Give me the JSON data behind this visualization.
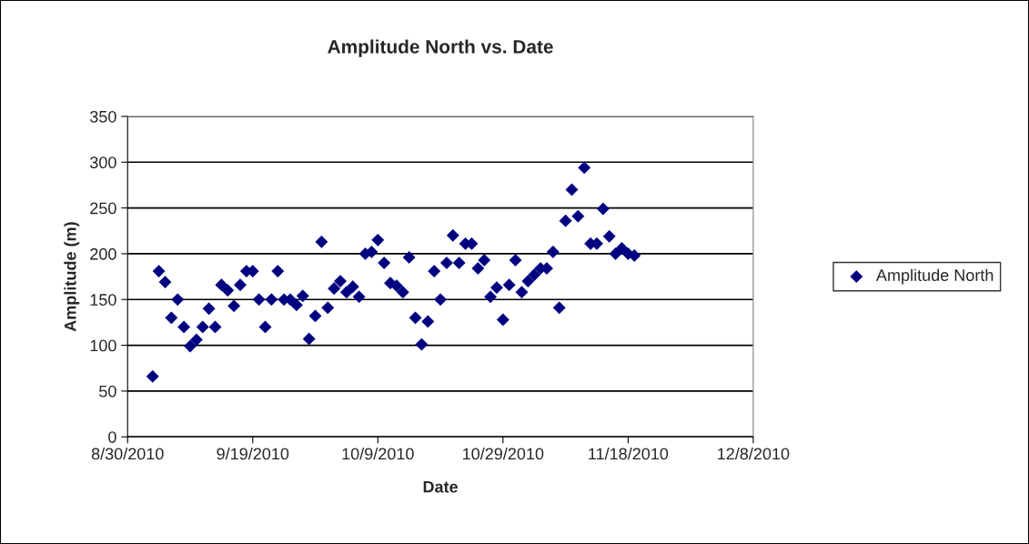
{
  "chart_data": {
    "type": "scatter",
    "title": "Amplitude North vs. Date",
    "xlabel": "Date",
    "ylabel": "Amplitude (m)",
    "x": [
      "2010-09-03",
      "2010-09-04",
      "2010-09-05",
      "2010-09-06",
      "2010-09-07",
      "2010-09-08",
      "2010-09-09",
      "2010-09-10",
      "2010-09-11",
      "2010-09-12",
      "2010-09-13",
      "2010-09-14",
      "2010-09-15",
      "2010-09-16",
      "2010-09-17",
      "2010-09-18",
      "2010-09-19",
      "2010-09-20",
      "2010-09-21",
      "2010-09-22",
      "2010-09-23",
      "2010-09-24",
      "2010-09-25",
      "2010-09-26",
      "2010-09-27",
      "2010-09-28",
      "2010-09-29",
      "2010-09-30",
      "2010-10-01",
      "2010-10-02",
      "2010-10-03",
      "2010-10-04",
      "2010-10-05",
      "2010-10-06",
      "2010-10-07",
      "2010-10-08",
      "2010-10-09",
      "2010-10-10",
      "2010-10-11",
      "2010-10-12",
      "2010-10-13",
      "2010-10-14",
      "2010-10-15",
      "2010-10-16",
      "2010-10-17",
      "2010-10-18",
      "2010-10-19",
      "2010-10-20",
      "2010-10-21",
      "2010-10-22",
      "2010-10-23",
      "2010-10-24",
      "2010-10-25",
      "2010-10-26",
      "2010-10-27",
      "2010-10-28",
      "2010-10-29",
      "2010-10-30",
      "2010-10-31",
      "2010-11-01",
      "2010-11-02",
      "2010-11-03",
      "2010-11-04",
      "2010-11-05",
      "2010-11-06",
      "2010-11-07",
      "2010-11-08",
      "2010-11-09",
      "2010-11-10",
      "2010-11-11",
      "2010-11-12",
      "2010-11-13",
      "2010-11-14",
      "2010-11-15",
      "2010-11-16",
      "2010-11-17",
      "2010-11-18",
      "2010-11-19"
    ],
    "series": [
      {
        "name": "Amplitude North",
        "color": "#000080",
        "values": [
          66,
          181,
          169,
          130,
          150,
          120,
          99,
          106,
          120,
          140,
          120,
          166,
          160,
          143,
          166,
          181,
          181,
          150,
          120,
          150,
          181,
          150,
          150,
          144,
          154,
          107,
          132,
          213,
          141,
          162,
          170,
          158,
          164,
          153,
          200,
          202,
          215,
          190,
          168,
          165,
          158,
          196,
          130,
          101,
          126,
          181,
          150,
          190,
          220,
          190,
          211,
          211,
          184,
          193,
          153,
          163,
          128,
          166,
          193,
          158,
          170,
          177,
          184,
          184,
          202,
          141,
          236,
          270,
          241,
          294,
          211,
          211,
          249,
          219,
          200,
          206,
          200,
          198
        ]
      }
    ],
    "xlim": [
      "2010-08-30",
      "2010-12-08"
    ],
    "xticks": [
      {
        "value": "2010-08-30",
        "label": "8/30/2010"
      },
      {
        "value": "2010-09-19",
        "label": "9/19/2010"
      },
      {
        "value": "2010-10-09",
        "label": "10/9/2010"
      },
      {
        "value": "2010-10-29",
        "label": "10/29/2010"
      },
      {
        "value": "2010-11-18",
        "label": "11/18/2010"
      },
      {
        "value": "2010-12-08",
        "label": "12/8/2010"
      }
    ],
    "ylim": [
      0,
      350
    ],
    "yticks": [
      0,
      50,
      100,
      150,
      200,
      250,
      300,
      350
    ],
    "grid": "y",
    "legend": "right",
    "marker": "diamond"
  }
}
